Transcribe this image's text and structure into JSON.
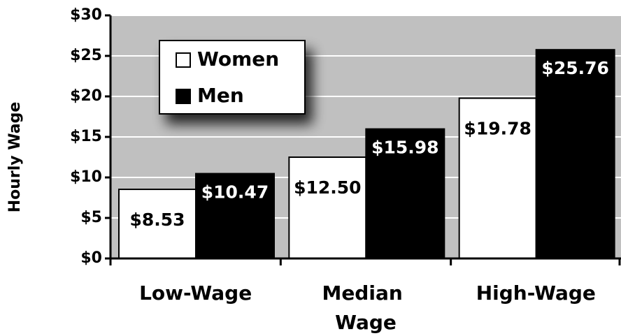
{
  "chart_data": {
    "type": "bar",
    "y_label": "Hourly Wage",
    "categories": [
      "Low-Wage",
      "Median Wage",
      "High-Wage"
    ],
    "series": [
      {
        "name": "Women",
        "color": "#ffffff",
        "values": [
          8.53,
          12.5,
          19.78
        ],
        "value_labels": [
          "$8.53",
          "$12.50",
          "$19.78"
        ]
      },
      {
        "name": "Men",
        "color": "#000000",
        "values": [
          10.47,
          15.98,
          25.76
        ],
        "value_labels": [
          "$10.47",
          "$15.98",
          "$25.76"
        ]
      }
    ],
    "ylim": [
      0,
      30
    ],
    "yticks": [
      {
        "value": 0,
        "label": "$0"
      },
      {
        "value": 5,
        "label": "$5"
      },
      {
        "value": 10,
        "label": "$10"
      },
      {
        "value": 15,
        "label": "$15"
      },
      {
        "value": 20,
        "label": "$20"
      },
      {
        "value": 25,
        "label": "$25"
      },
      {
        "value": 30,
        "label": "$30"
      }
    ],
    "grid": true,
    "legend": "upper left"
  }
}
